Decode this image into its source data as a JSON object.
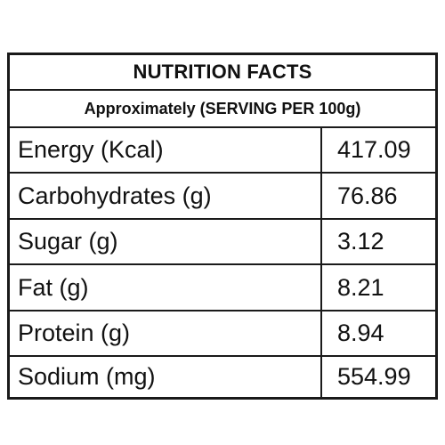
{
  "table": {
    "title": "NUTRITION FACTS",
    "subtitle": "Approximately (SERVING PER 100g)",
    "rows": [
      {
        "label": "Energy (Kcal)",
        "value": "417.09"
      },
      {
        "label": "Carbohydrates (g)",
        "value": "76.86"
      },
      {
        "label": "Sugar (g)",
        "value": "3.12"
      },
      {
        "label": "Fat (g)",
        "value": "8.21"
      },
      {
        "label": "Protein (g)",
        "value": "8.94"
      },
      {
        "label": "Sodium (mg)",
        "value": "554.99"
      }
    ]
  }
}
